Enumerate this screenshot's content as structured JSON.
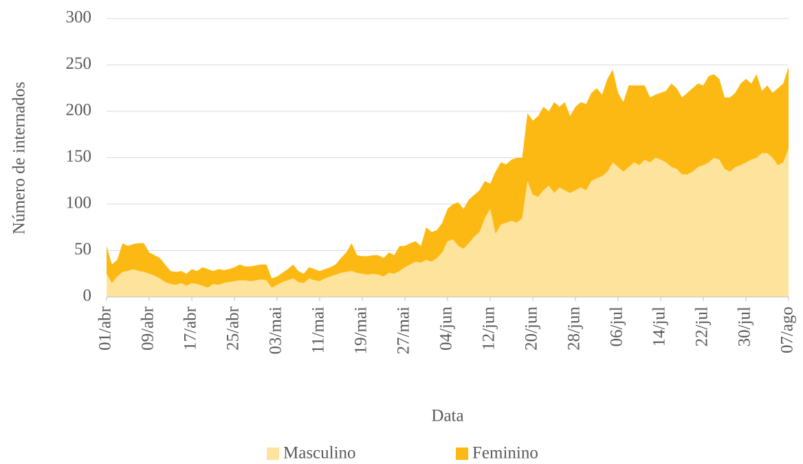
{
  "chart_data": {
    "type": "stacked_area",
    "y_label": "Número de internados",
    "x_label": "Data",
    "categories": [
      "01/abr",
      null,
      null,
      null,
      null,
      null,
      null,
      null,
      "09/abr",
      null,
      null,
      null,
      null,
      null,
      null,
      null,
      "17/abr",
      null,
      null,
      null,
      null,
      null,
      null,
      null,
      "25/abr",
      null,
      null,
      null,
      null,
      null,
      null,
      null,
      "03/mai",
      null,
      null,
      null,
      null,
      null,
      null,
      null,
      "11/mai",
      null,
      null,
      null,
      null,
      null,
      null,
      null,
      "19/mai",
      null,
      null,
      null,
      null,
      null,
      null,
      null,
      "27/mai",
      null,
      null,
      null,
      null,
      null,
      null,
      null,
      "04/jun",
      null,
      null,
      null,
      null,
      null,
      null,
      null,
      "12/jun",
      null,
      null,
      null,
      null,
      null,
      null,
      null,
      "20/jun",
      null,
      null,
      null,
      null,
      null,
      null,
      null,
      "28/jun",
      null,
      null,
      null,
      null,
      null,
      null,
      null,
      "06/jul",
      null,
      null,
      null,
      null,
      null,
      null,
      null,
      "14/jul",
      null,
      null,
      null,
      null,
      null,
      null,
      null,
      "22/jul",
      null,
      null,
      null,
      null,
      null,
      null,
      null,
      "30/jul",
      null,
      null,
      null,
      null,
      null,
      null,
      null,
      "07/ago"
    ],
    "series": [
      {
        "name": "Masculino",
        "color": "#fde39b",
        "values": [
          25,
          15,
          22,
          27,
          28,
          30,
          28,
          27,
          25,
          23,
          20,
          16,
          14,
          13,
          15,
          12,
          15,
          14,
          12,
          10,
          14,
          13,
          15,
          16,
          17,
          18,
          18,
          17,
          18,
          19,
          18,
          10,
          13,
          16,
          18,
          20,
          16,
          15,
          20,
          18,
          17,
          20,
          22,
          24,
          26,
          27,
          28,
          26,
          25,
          24,
          25,
          24,
          22,
          26,
          25,
          28,
          32,
          35,
          38,
          37,
          40,
          38,
          42,
          48,
          60,
          62,
          55,
          52,
          58,
          65,
          70,
          85,
          95,
          68,
          78,
          80,
          82,
          80,
          85,
          125,
          110,
          108,
          115,
          120,
          112,
          118,
          115,
          112,
          115,
          118,
          115,
          125,
          128,
          130,
          135,
          145,
          140,
          135,
          140,
          145,
          142,
          148,
          145,
          150,
          148,
          145,
          140,
          138,
          132,
          132,
          135,
          140,
          142,
          145,
          150,
          148,
          138,
          135,
          140,
          142,
          145,
          148,
          150,
          155,
          155,
          150,
          142,
          145,
          160
        ]
      },
      {
        "name": "Feminino",
        "color": "#fdb913",
        "values": [
          30,
          20,
          18,
          31,
          27,
          27,
          30,
          31,
          23,
          22,
          22,
          19,
          14,
          14,
          13,
          13,
          15,
          14,
          20,
          20,
          14,
          17,
          14,
          14,
          15,
          17,
          15,
          16,
          16,
          16,
          17,
          10,
          9,
          10,
          12,
          15,
          12,
          10,
          12,
          12,
          11,
          10,
          10,
          11,
          16,
          21,
          30,
          19,
          19,
          20,
          20,
          21,
          20,
          22,
          20,
          27,
          23,
          23,
          22,
          18,
          35,
          32,
          30,
          32,
          35,
          38,
          47,
          43,
          47,
          45,
          45,
          40,
          27,
          67,
          67,
          63,
          66,
          70,
          65,
          73,
          80,
          87,
          90,
          80,
          98,
          87,
          95,
          83,
          90,
          92,
          93,
          95,
          97,
          88,
          100,
          100,
          80,
          75,
          88,
          83,
          86,
          80,
          70,
          68,
          72,
          77,
          90,
          87,
          83,
          88,
          90,
          90,
          86,
          93,
          90,
          87,
          77,
          80,
          80,
          88,
          90,
          82,
          90,
          67,
          73,
          70,
          83,
          85,
          88
        ]
      }
    ],
    "ylim": [
      0,
      300
    ],
    "yticks": [
      0,
      50,
      100,
      150,
      200,
      250,
      300
    ],
    "grid": true,
    "legend": "bottom"
  }
}
